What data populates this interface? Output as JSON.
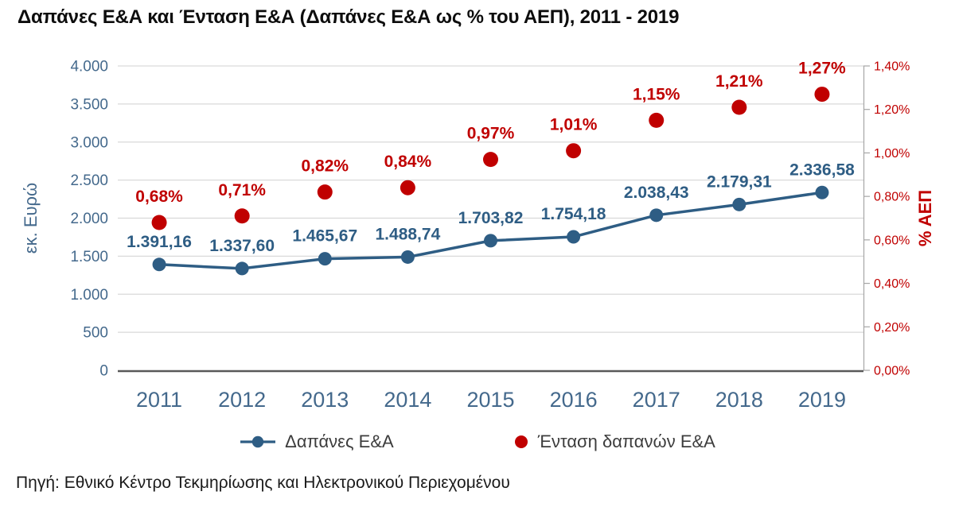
{
  "title": "Δαπάνες Ε&Α και Ένταση Ε&Α (Δαπάνες Ε&Α ως % του ΑΕΠ), 2011 - 2019",
  "source": "Πηγή: Εθνικό Κέντρο Τεκμηρίωσης και Ηλεκτρονικού Περιεχομένου",
  "legend": {
    "series1": "Δαπάνες Ε&Α",
    "series2": "Ένταση δαπανών Ε&Α"
  },
  "colors": {
    "blue": "#2E5D84",
    "red": "#C00000",
    "axis_blue": "#44698C",
    "grid": "#D9D9D9",
    "axis_line": "#595959",
    "right_axis_line": "#A6A6A6"
  },
  "chart_data": {
    "type": "line",
    "categories": [
      "2011",
      "2012",
      "2013",
      "2014",
      "2015",
      "2016",
      "2017",
      "2018",
      "2019"
    ],
    "series": [
      {
        "name": "Δαπάνες Ε&Α",
        "type": "line",
        "axis": "left",
        "color": "#2E5D84",
        "values": [
          1391.16,
          1337.6,
          1465.67,
          1488.74,
          1703.82,
          1754.18,
          2038.43,
          2179.31,
          2336.58
        ],
        "labels": [
          "1.391,16",
          "1.337,60",
          "1.465,67",
          "1.488,74",
          "1.703,82",
          "1.754,18",
          "2.038,43",
          "2.179,31",
          "2.336,58"
        ]
      },
      {
        "name": "Ένταση δαπανών Ε&Α",
        "type": "scatter",
        "axis": "right",
        "color": "#C00000",
        "values": [
          0.68,
          0.71,
          0.82,
          0.84,
          0.97,
          1.01,
          1.15,
          1.21,
          1.27
        ],
        "labels": [
          "0,68%",
          "0,71%",
          "0,82%",
          "0,84%",
          "0,97%",
          "1,01%",
          "1,15%",
          "1,21%",
          "1,27%"
        ]
      }
    ],
    "left_axis": {
      "label": "εκ. Ευρώ",
      "min": 0,
      "max": 4000,
      "step": 500,
      "ticks": [
        "4.000",
        "3.500",
        "3.000",
        "2.500",
        "2.000",
        "1.500",
        "1.000",
        "500",
        "0"
      ]
    },
    "right_axis": {
      "label": "% ΑΕΠ",
      "min": 0,
      "max": 1.4,
      "step": 0.2,
      "ticks": [
        "1,40%",
        "1,20%",
        "1,00%",
        "0,80%",
        "0,60%",
        "0,40%",
        "0,20%",
        "0,00%"
      ]
    },
    "grid": true,
    "legend_position": "bottom"
  }
}
